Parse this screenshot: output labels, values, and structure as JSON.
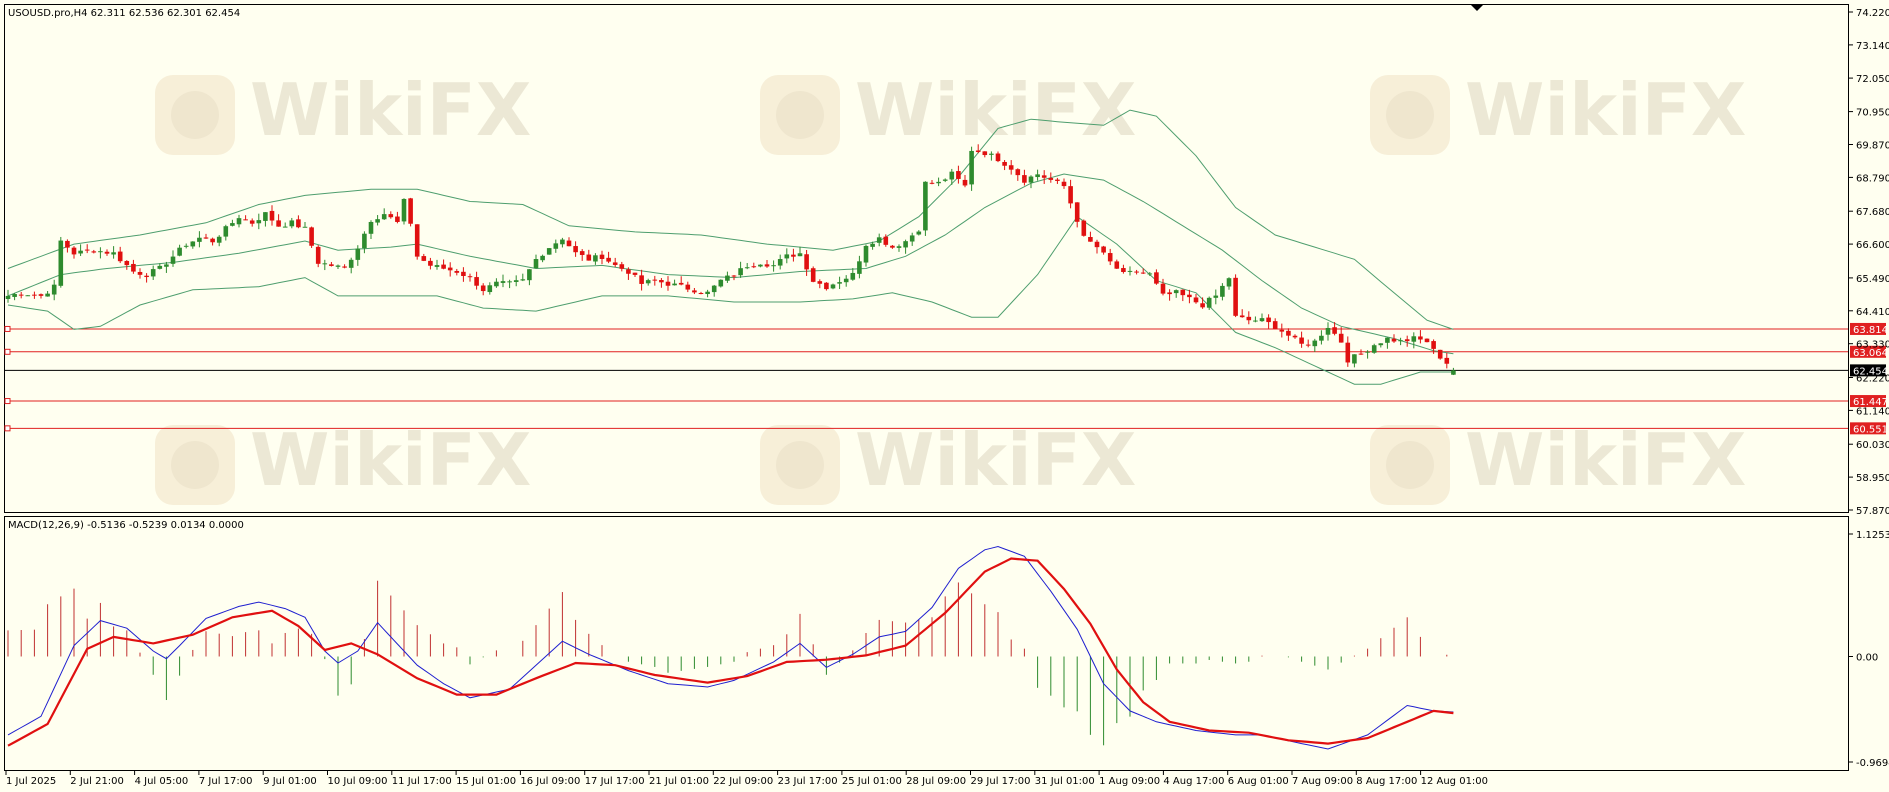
{
  "header": {
    "symbol_info": "USOUSD.pro,H4  62.311 62.536 62.301 62.454",
    "macd_info": "MACD(12,26,9) -0.5136 -0.5239 0.0134 0.0000"
  },
  "watermark": {
    "text": "WikiFX"
  },
  "colors": {
    "background": "#fffff0",
    "bull": "#2e8b2e",
    "bear": "#e01010",
    "band": "#4e9e6e",
    "level": "#e02020",
    "macd_line": "#1f1fcf",
    "signal_line": "#e01010",
    "hist_pos": "#c03030",
    "hist_neg": "#2e8b2e"
  },
  "chart_data": [
    {
      "type": "candlestick",
      "symbol": "USOUSD.pro",
      "timeframe": "H4",
      "ohlc_last": {
        "open": 62.311,
        "high": 62.536,
        "low": 62.301,
        "close": 62.454
      },
      "ylim": [
        57.87,
        74.22
      ],
      "y_ticks": [
        74.22,
        73.14,
        72.05,
        70.95,
        69.87,
        68.79,
        67.68,
        66.6,
        65.49,
        64.41,
        63.33,
        62.22,
        61.14,
        60.03,
        58.95,
        57.87
      ],
      "x_ticks": [
        "1 Jul 2025",
        "2 Jul 21:00",
        "4 Jul 05:00",
        "7 Jul 17:00",
        "9 Jul 01:00",
        "10 Jul 09:00",
        "11 Jul 17:00",
        "15 Jul 01:00",
        "16 Jul 09:00",
        "17 Jul 17:00",
        "21 Jul 01:00",
        "22 Jul 09:00",
        "23 Jul 17:00",
        "25 Jul 01:00",
        "28 Jul 09:00",
        "29 Jul 17:00",
        "31 Jul 01:00",
        "1 Aug 09:00",
        "4 Aug 17:00",
        "6 Aug 01:00",
        "7 Aug 09:00",
        "8 Aug 17:00",
        "12 Aug 01:00"
      ],
      "close_path": [
        [
          0,
          64.9
        ],
        [
          2,
          65.0
        ],
        [
          5,
          64.9
        ],
        [
          7,
          65.2
        ],
        [
          8,
          66.7
        ],
        [
          10,
          66.3
        ],
        [
          13,
          66.4
        ],
        [
          16,
          66.3
        ],
        [
          19,
          65.7
        ],
        [
          21,
          65.6
        ],
        [
          23,
          65.8
        ],
        [
          25,
          66.2
        ],
        [
          27,
          66.6
        ],
        [
          29,
          66.8
        ],
        [
          31,
          66.7
        ],
        [
          33,
          67.1
        ],
        [
          35,
          67.5
        ],
        [
          37,
          67.3
        ],
        [
          39,
          67.6
        ],
        [
          41,
          67.2
        ],
        [
          43,
          67.3
        ],
        [
          45,
          67.1
        ],
        [
          47,
          66.0
        ],
        [
          49,
          65.9
        ],
        [
          51,
          65.8
        ],
        [
          53,
          66.5
        ],
        [
          55,
          67.4
        ],
        [
          57,
          67.6
        ],
        [
          59,
          67.3
        ],
        [
          60,
          68.0
        ],
        [
          61,
          67.3
        ],
        [
          62,
          66.2
        ],
        [
          64,
          65.9
        ],
        [
          66,
          65.8
        ],
        [
          68,
          65.7
        ],
        [
          70,
          65.5
        ],
        [
          72,
          65.1
        ],
        [
          74,
          65.3
        ],
        [
          76,
          65.3
        ],
        [
          78,
          65.4
        ],
        [
          80,
          66.1
        ],
        [
          82,
          66.5
        ],
        [
          84,
          66.8
        ],
        [
          86,
          66.3
        ],
        [
          88,
          66.1
        ],
        [
          90,
          66.2
        ],
        [
          92,
          65.9
        ],
        [
          94,
          65.7
        ],
        [
          96,
          65.3
        ],
        [
          98,
          65.4
        ],
        [
          100,
          65.3
        ],
        [
          102,
          65.2
        ],
        [
          104,
          65.1
        ],
        [
          106,
          65.0
        ],
        [
          108,
          65.4
        ],
        [
          110,
          65.6
        ],
        [
          112,
          65.9
        ],
        [
          114,
          66.0
        ],
        [
          116,
          65.9
        ],
        [
          118,
          66.2
        ],
        [
          120,
          66.3
        ],
        [
          122,
          65.4
        ],
        [
          124,
          65.2
        ],
        [
          126,
          65.4
        ],
        [
          128,
          65.6
        ],
        [
          130,
          66.6
        ],
        [
          132,
          66.8
        ],
        [
          134,
          66.5
        ],
        [
          136,
          66.7
        ],
        [
          138,
          67.1
        ],
        [
          139,
          68.6
        ],
        [
          141,
          68.6
        ],
        [
          143,
          68.9
        ],
        [
          145,
          68.5
        ],
        [
          146,
          69.7
        ],
        [
          148,
          69.6
        ],
        [
          150,
          69.4
        ],
        [
          152,
          69.1
        ],
        [
          154,
          68.7
        ],
        [
          156,
          68.9
        ],
        [
          158,
          68.7
        ],
        [
          160,
          68.5
        ],
        [
          162,
          67.4
        ],
        [
          163,
          66.8
        ],
        [
          165,
          66.5
        ],
        [
          167,
          66.0
        ],
        [
          169,
          65.6
        ],
        [
          171,
          65.7
        ],
        [
          173,
          65.6
        ],
        [
          175,
          64.9
        ],
        [
          177,
          65.0
        ],
        [
          179,
          64.8
        ],
        [
          181,
          64.6
        ],
        [
          183,
          64.9
        ],
        [
          185,
          65.5
        ],
        [
          186,
          64.2
        ],
        [
          188,
          64.1
        ],
        [
          190,
          64.1
        ],
        [
          192,
          63.9
        ],
        [
          194,
          63.6
        ],
        [
          196,
          63.3
        ],
        [
          198,
          63.4
        ],
        [
          200,
          63.9
        ],
        [
          202,
          63.4
        ],
        [
          203,
          62.8
        ],
        [
          205,
          63.0
        ],
        [
          207,
          63.3
        ],
        [
          209,
          63.5
        ],
        [
          211,
          63.4
        ],
        [
          213,
          63.5
        ],
        [
          215,
          63.4
        ],
        [
          216,
          63.1
        ],
        [
          218,
          62.7
        ],
        [
          219,
          62.454
        ]
      ],
      "bollinger_upper": [
        [
          0,
          65.8
        ],
        [
          10,
          66.6
        ],
        [
          20,
          66.9
        ],
        [
          30,
          67.3
        ],
        [
          38,
          67.9
        ],
        [
          45,
          68.2
        ],
        [
          55,
          68.4
        ],
        [
          62,
          68.4
        ],
        [
          70,
          68.0
        ],
        [
          78,
          67.9
        ],
        [
          85,
          67.2
        ],
        [
          95,
          67.0
        ],
        [
          105,
          66.9
        ],
        [
          115,
          66.6
        ],
        [
          125,
          66.4
        ],
        [
          132,
          66.7
        ],
        [
          138,
          67.5
        ],
        [
          144,
          68.8
        ],
        [
          150,
          70.4
        ],
        [
          155,
          70.7
        ],
        [
          160,
          70.6
        ],
        [
          166,
          70.5
        ],
        [
          170,
          71.0
        ],
        [
          174,
          70.8
        ],
        [
          180,
          69.5
        ],
        [
          186,
          67.8
        ],
        [
          192,
          66.9
        ],
        [
          198,
          66.5
        ],
        [
          204,
          66.1
        ],
        [
          210,
          65.0
        ],
        [
          215,
          64.1
        ],
        [
          219,
          63.8
        ]
      ],
      "bollinger_middle": [
        [
          0,
          64.9
        ],
        [
          8,
          65.6
        ],
        [
          15,
          65.8
        ],
        [
          25,
          66.0
        ],
        [
          35,
          66.3
        ],
        [
          45,
          66.7
        ],
        [
          50,
          66.4
        ],
        [
          58,
          66.5
        ],
        [
          62,
          66.6
        ],
        [
          70,
          66.2
        ],
        [
          80,
          65.8
        ],
        [
          90,
          65.9
        ],
        [
          100,
          65.6
        ],
        [
          110,
          65.5
        ],
        [
          120,
          65.7
        ],
        [
          130,
          65.8
        ],
        [
          136,
          66.2
        ],
        [
          142,
          66.9
        ],
        [
          148,
          67.8
        ],
        [
          155,
          68.6
        ],
        [
          160,
          68.9
        ],
        [
          166,
          68.7
        ],
        [
          172,
          68.0
        ],
        [
          178,
          67.2
        ],
        [
          184,
          66.4
        ],
        [
          190,
          65.4
        ],
        [
          196,
          64.5
        ],
        [
          202,
          63.9
        ],
        [
          210,
          63.5
        ],
        [
          216,
          63.1
        ],
        [
          219,
          63.0
        ]
      ],
      "bollinger_lower": [
        [
          0,
          64.6
        ],
        [
          6,
          64.4
        ],
        [
          10,
          63.8
        ],
        [
          14,
          63.9
        ],
        [
          20,
          64.6
        ],
        [
          28,
          65.1
        ],
        [
          38,
          65.2
        ],
        [
          45,
          65.5
        ],
        [
          50,
          64.9
        ],
        [
          58,
          64.9
        ],
        [
          65,
          64.9
        ],
        [
          72,
          64.5
        ],
        [
          80,
          64.4
        ],
        [
          90,
          64.9
        ],
        [
          100,
          64.9
        ],
        [
          110,
          64.7
        ],
        [
          120,
          64.7
        ],
        [
          128,
          64.8
        ],
        [
          134,
          65.0
        ],
        [
          140,
          64.7
        ],
        [
          146,
          64.2
        ],
        [
          150,
          64.2
        ],
        [
          156,
          65.6
        ],
        [
          162,
          67.5
        ],
        [
          168,
          66.6
        ],
        [
          174,
          65.4
        ],
        [
          180,
          65.0
        ],
        [
          186,
          63.7
        ],
        [
          192,
          63.2
        ],
        [
          198,
          62.6
        ],
        [
          204,
          62.0
        ],
        [
          208,
          62.0
        ],
        [
          214,
          62.4
        ],
        [
          219,
          62.4
        ]
      ],
      "horizontal_levels": [
        63.814,
        63.064,
        61.447,
        60.551
      ],
      "current_price": 62.454
    },
    {
      "type": "macd",
      "params": "MACD(12,26,9)",
      "values": {
        "macd": -0.5136,
        "signal": -0.5239,
        "histogram": 0.0134,
        "extra": 0.0
      },
      "ylim": [
        -0.9694,
        1.1253
      ],
      "y_ticks": [
        1.1253,
        0.0,
        -0.9694
      ],
      "macd_line": [
        [
          0,
          -0.72
        ],
        [
          5,
          -0.55
        ],
        [
          10,
          0.1
        ],
        [
          14,
          0.33
        ],
        [
          18,
          0.26
        ],
        [
          22,
          0.05
        ],
        [
          24,
          -0.02
        ],
        [
          26,
          0.1
        ],
        [
          30,
          0.35
        ],
        [
          35,
          0.46
        ],
        [
          38,
          0.5
        ],
        [
          42,
          0.44
        ],
        [
          45,
          0.36
        ],
        [
          48,
          0.05
        ],
        [
          50,
          -0.06
        ],
        [
          53,
          0.05
        ],
        [
          56,
          0.31
        ],
        [
          58,
          0.18
        ],
        [
          62,
          -0.08
        ],
        [
          66,
          -0.25
        ],
        [
          70,
          -0.38
        ],
        [
          76,
          -0.3
        ],
        [
          80,
          -0.08
        ],
        [
          84,
          0.14
        ],
        [
          88,
          0.02
        ],
        [
          94,
          -0.13
        ],
        [
          100,
          -0.25
        ],
        [
          106,
          -0.28
        ],
        [
          110,
          -0.22
        ],
        [
          116,
          -0.05
        ],
        [
          120,
          0.12
        ],
        [
          124,
          -0.1
        ],
        [
          128,
          0.02
        ],
        [
          132,
          0.18
        ],
        [
          136,
          0.23
        ],
        [
          140,
          0.45
        ],
        [
          144,
          0.81
        ],
        [
          148,
          0.98
        ],
        [
          150,
          1.01
        ],
        [
          154,
          0.92
        ],
        [
          158,
          0.6
        ],
        [
          162,
          0.25
        ],
        [
          166,
          -0.25
        ],
        [
          170,
          -0.5
        ],
        [
          174,
          -0.6
        ],
        [
          180,
          -0.68
        ],
        [
          186,
          -0.72
        ],
        [
          190,
          -0.72
        ],
        [
          196,
          -0.8
        ],
        [
          200,
          -0.85
        ],
        [
          206,
          -0.72
        ],
        [
          212,
          -0.45
        ],
        [
          216,
          -0.5
        ],
        [
          219,
          -0.51
        ]
      ],
      "signal_line": [
        [
          0,
          -0.82
        ],
        [
          6,
          -0.62
        ],
        [
          12,
          0.07
        ],
        [
          16,
          0.18
        ],
        [
          22,
          0.12
        ],
        [
          28,
          0.2
        ],
        [
          34,
          0.36
        ],
        [
          40,
          0.42
        ],
        [
          44,
          0.28
        ],
        [
          48,
          0.06
        ],
        [
          52,
          0.12
        ],
        [
          56,
          0.02
        ],
        [
          62,
          -0.2
        ],
        [
          68,
          -0.35
        ],
        [
          74,
          -0.35
        ],
        [
          80,
          -0.2
        ],
        [
          86,
          -0.06
        ],
        [
          92,
          -0.08
        ],
        [
          98,
          -0.17
        ],
        [
          106,
          -0.24
        ],
        [
          112,
          -0.18
        ],
        [
          118,
          -0.05
        ],
        [
          124,
          -0.03
        ],
        [
          130,
          0.01
        ],
        [
          136,
          0.1
        ],
        [
          142,
          0.4
        ],
        [
          148,
          0.78
        ],
        [
          152,
          0.9
        ],
        [
          156,
          0.88
        ],
        [
          160,
          0.62
        ],
        [
          164,
          0.3
        ],
        [
          168,
          -0.12
        ],
        [
          172,
          -0.42
        ],
        [
          176,
          -0.6
        ],
        [
          182,
          -0.68
        ],
        [
          188,
          -0.7
        ],
        [
          194,
          -0.77
        ],
        [
          200,
          -0.8
        ],
        [
          206,
          -0.75
        ],
        [
          212,
          -0.6
        ],
        [
          216,
          -0.5
        ],
        [
          219,
          -0.52
        ]
      ]
    }
  ]
}
